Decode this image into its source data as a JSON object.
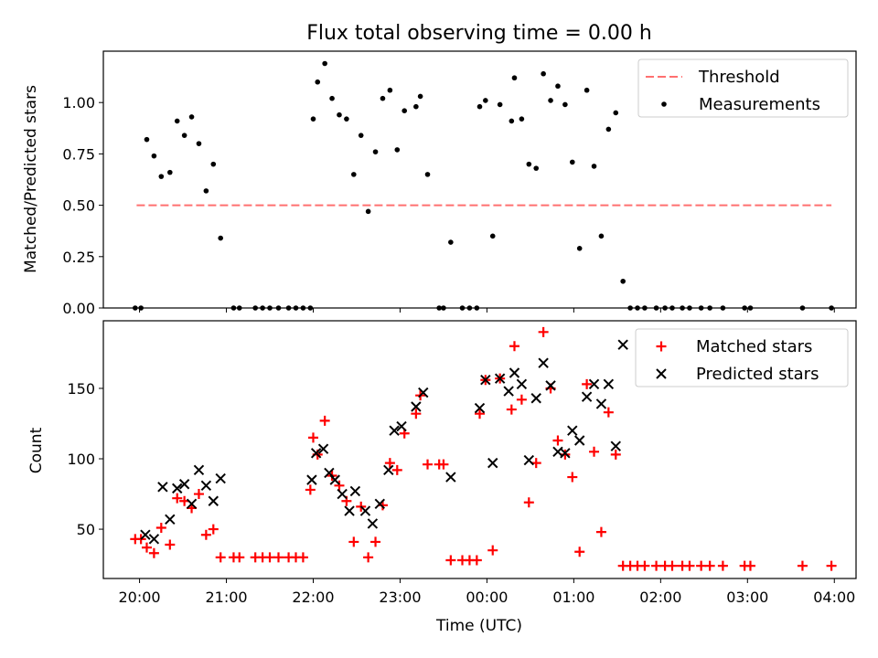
{
  "chart_data": [
    {
      "type": "scatter",
      "title": "Flux total observing time = 0.00 h",
      "xlabel": "",
      "ylabel": "Matched/Predicted stars",
      "xlim": [
        "19:35",
        "04:15"
      ],
      "ylim": [
        0,
        1.25
      ],
      "yticks": [
        "0.00",
        "0.25",
        "0.50",
        "0.75",
        "1.00"
      ],
      "legend_position": "top-right",
      "threshold": {
        "name": "Threshold",
        "y": 0.5,
        "x_range": [
          "19:58",
          "03:58"
        ],
        "color": "#ff7070",
        "style": "dashed"
      },
      "series": [
        {
          "name": "Measurements",
          "color": "#000000",
          "marker": "dot",
          "points": [
            [
              "19:57",
              0
            ],
            [
              "20:01",
              0
            ],
            [
              "20:05",
              0.82
            ],
            [
              "20:10",
              0.74
            ],
            [
              "20:15",
              0.64
            ],
            [
              "20:21",
              0.66
            ],
            [
              "20:26",
              0.91
            ],
            [
              "20:31",
              0.84
            ],
            [
              "20:36",
              0.93
            ],
            [
              "20:41",
              0.8
            ],
            [
              "20:46",
              0.57
            ],
            [
              "20:51",
              0.7
            ],
            [
              "20:56",
              0.34
            ],
            [
              "21:05",
              0
            ],
            [
              "21:09",
              0
            ],
            [
              "21:20",
              0
            ],
            [
              "21:25",
              0
            ],
            [
              "21:30",
              0
            ],
            [
              "21:36",
              0
            ],
            [
              "21:43",
              0
            ],
            [
              "21:48",
              0
            ],
            [
              "21:53",
              0
            ],
            [
              "21:58",
              0
            ],
            [
              "22:00",
              0.92
            ],
            [
              "22:03",
              1.1
            ],
            [
              "22:08",
              1.19
            ],
            [
              "22:13",
              1.02
            ],
            [
              "22:18",
              0.94
            ],
            [
              "22:23",
              0.92
            ],
            [
              "22:28",
              0.65
            ],
            [
              "22:33",
              0.84
            ],
            [
              "22:38",
              0.47
            ],
            [
              "22:43",
              0.76
            ],
            [
              "22:48",
              1.02
            ],
            [
              "22:53",
              1.06
            ],
            [
              "22:58",
              0.77
            ],
            [
              "23:03",
              0.96
            ],
            [
              "23:11",
              0.98
            ],
            [
              "23:14",
              1.03
            ],
            [
              "23:19",
              0.65
            ],
            [
              "23:27",
              0
            ],
            [
              "23:30",
              0
            ],
            [
              "23:35",
              0.32
            ],
            [
              "23:43",
              0
            ],
            [
              "23:48",
              0
            ],
            [
              "23:53",
              0
            ],
            [
              "23:55",
              0.98
            ],
            [
              "23:59",
              1.01
            ],
            [
              "00:04",
              0.35
            ],
            [
              "00:09",
              0.99
            ],
            [
              "00:17",
              0.91
            ],
            [
              "00:19",
              1.12
            ],
            [
              "00:24",
              0.92
            ],
            [
              "00:29",
              0.7
            ],
            [
              "00:34",
              0.68
            ],
            [
              "00:39",
              1.14
            ],
            [
              "00:44",
              1.01
            ],
            [
              "00:49",
              1.08
            ],
            [
              "00:54",
              0.99
            ],
            [
              "00:59",
              0.71
            ],
            [
              "01:04",
              0.29
            ],
            [
              "01:09",
              1.06
            ],
            [
              "01:14",
              0.69
            ],
            [
              "01:19",
              0.35
            ],
            [
              "01:24",
              0.87
            ],
            [
              "01:29",
              0.95
            ],
            [
              "01:34",
              0.13
            ],
            [
              "01:39",
              0
            ],
            [
              "01:44",
              0
            ],
            [
              "01:49",
              0
            ],
            [
              "01:57",
              0
            ],
            [
              "02:03",
              0
            ],
            [
              "02:08",
              0
            ],
            [
              "02:15",
              0
            ],
            [
              "02:20",
              0
            ],
            [
              "02:28",
              0
            ],
            [
              "02:34",
              0
            ],
            [
              "02:43",
              0
            ],
            [
              "02:58",
              0
            ],
            [
              "03:02",
              0
            ],
            [
              "03:38",
              0
            ],
            [
              "03:58",
              0
            ]
          ]
        }
      ]
    },
    {
      "type": "scatter",
      "title": "",
      "xlabel": "Time (UTC)",
      "ylabel": "Count",
      "xlim": [
        "19:35",
        "04:15"
      ],
      "ylim": [
        15,
        198
      ],
      "yticks": [
        "50",
        "100",
        "150"
      ],
      "xticks": [
        "20:00",
        "21:00",
        "22:00",
        "23:00",
        "00:00",
        "01:00",
        "02:00",
        "03:00",
        "04:00"
      ],
      "legend_position": "top-right",
      "series": [
        {
          "name": "Matched stars",
          "color": "#ff0000",
          "marker": "plus",
          "points": [
            [
              "19:57",
              43
            ],
            [
              "20:01",
              43
            ],
            [
              "20:05",
              37
            ],
            [
              "20:10",
              33
            ],
            [
              "20:15",
              51
            ],
            [
              "20:21",
              39
            ],
            [
              "20:26",
              72
            ],
            [
              "20:31",
              70
            ],
            [
              "20:36",
              65
            ],
            [
              "20:41",
              75
            ],
            [
              "20:46",
              46
            ],
            [
              "20:51",
              50
            ],
            [
              "20:56",
              30
            ],
            [
              "21:05",
              30
            ],
            [
              "21:09",
              30
            ],
            [
              "21:20",
              30
            ],
            [
              "21:25",
              30
            ],
            [
              "21:30",
              30
            ],
            [
              "21:36",
              30
            ],
            [
              "21:43",
              30
            ],
            [
              "21:48",
              30
            ],
            [
              "21:53",
              30
            ],
            [
              "21:58",
              78
            ],
            [
              "22:00",
              115
            ],
            [
              "22:03",
              103
            ],
            [
              "22:08",
              127
            ],
            [
              "22:13",
              88
            ],
            [
              "22:18",
              81
            ],
            [
              "22:23",
              70
            ],
            [
              "22:28",
              41
            ],
            [
              "22:33",
              66
            ],
            [
              "22:38",
              30
            ],
            [
              "22:43",
              41
            ],
            [
              "22:48",
              67
            ],
            [
              "22:53",
              97
            ],
            [
              "22:58",
              92
            ],
            [
              "23:03",
              118
            ],
            [
              "23:11",
              132
            ],
            [
              "23:14",
              145
            ],
            [
              "23:19",
              96
            ],
            [
              "23:27",
              96
            ],
            [
              "23:30",
              96
            ],
            [
              "23:35",
              28
            ],
            [
              "23:43",
              28
            ],
            [
              "23:48",
              28
            ],
            [
              "23:53",
              28
            ],
            [
              "23:55",
              132
            ],
            [
              "23:59",
              156
            ],
            [
              "00:04",
              35
            ],
            [
              "00:09",
              157
            ],
            [
              "00:17",
              135
            ],
            [
              "00:19",
              180
            ],
            [
              "00:24",
              142
            ],
            [
              "00:29",
              69
            ],
            [
              "00:34",
              97
            ],
            [
              "00:39",
              190
            ],
            [
              "00:44",
              150
            ],
            [
              "00:49",
              113
            ],
            [
              "00:54",
              103
            ],
            [
              "00:59",
              87
            ],
            [
              "01:04",
              34
            ],
            [
              "01:09",
              153
            ],
            [
              "01:14",
              105
            ],
            [
              "01:19",
              48
            ],
            [
              "01:24",
              133
            ],
            [
              "01:29",
              103
            ],
            [
              "01:34",
              24
            ],
            [
              "01:39",
              24
            ],
            [
              "01:44",
              24
            ],
            [
              "01:49",
              24
            ],
            [
              "01:57",
              24
            ],
            [
              "02:03",
              24
            ],
            [
              "02:08",
              24
            ],
            [
              "02:15",
              24
            ],
            [
              "02:20",
              24
            ],
            [
              "02:28",
              24
            ],
            [
              "02:34",
              24
            ],
            [
              "02:43",
              24
            ],
            [
              "02:58",
              24
            ],
            [
              "03:02",
              24
            ],
            [
              "03:38",
              24
            ],
            [
              "03:58",
              24
            ]
          ]
        },
        {
          "name": "Predicted stars",
          "color": "#000000",
          "marker": "x",
          "points": [
            [
              "20:04",
              46
            ],
            [
              "20:10",
              43
            ],
            [
              "20:16",
              80
            ],
            [
              "20:21",
              57
            ],
            [
              "20:26",
              79
            ],
            [
              "20:31",
              82
            ],
            [
              "20:36",
              68
            ],
            [
              "20:41",
              92
            ],
            [
              "20:46",
              81
            ],
            [
              "20:51",
              70
            ],
            [
              "20:56",
              86
            ],
            [
              "21:59",
              85
            ],
            [
              "22:02",
              104
            ],
            [
              "22:07",
              107
            ],
            [
              "22:11",
              90
            ],
            [
              "22:15",
              85
            ],
            [
              "22:20",
              75
            ],
            [
              "22:25",
              63
            ],
            [
              "22:29",
              77
            ],
            [
              "22:36",
              63
            ],
            [
              "22:41",
              54
            ],
            [
              "22:46",
              68
            ],
            [
              "22:52",
              92
            ],
            [
              "22:56",
              120
            ],
            [
              "23:01",
              123
            ],
            [
              "23:11",
              137
            ],
            [
              "23:16",
              147
            ],
            [
              "23:35",
              87
            ],
            [
              "23:55",
              136
            ],
            [
              "23:59",
              156
            ],
            [
              "00:04",
              97
            ],
            [
              "00:09",
              157
            ],
            [
              "00:15",
              148
            ],
            [
              "00:19",
              161
            ],
            [
              "00:24",
              153
            ],
            [
              "00:29",
              99
            ],
            [
              "00:34",
              143
            ],
            [
              "00:39",
              168
            ],
            [
              "00:44",
              152
            ],
            [
              "00:49",
              105
            ],
            [
              "00:54",
              104
            ],
            [
              "00:59",
              120
            ],
            [
              "01:04",
              113
            ],
            [
              "01:09",
              144
            ],
            [
              "01:14",
              153
            ],
            [
              "01:19",
              139
            ],
            [
              "01:24",
              153
            ],
            [
              "01:29",
              109
            ],
            [
              "01:34",
              181
            ]
          ]
        }
      ]
    }
  ]
}
